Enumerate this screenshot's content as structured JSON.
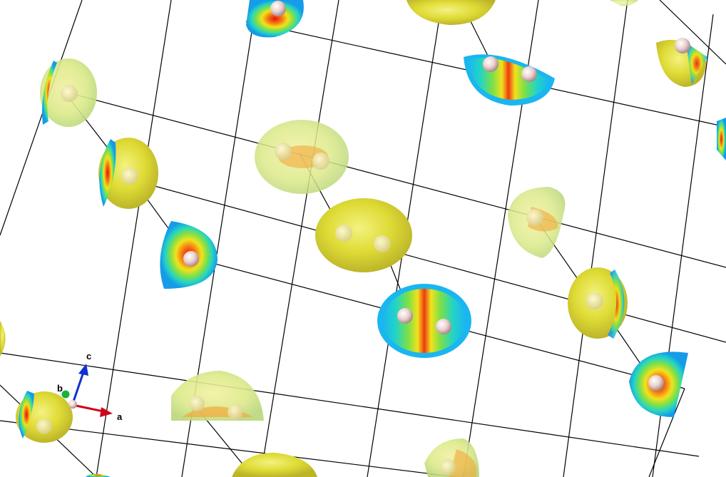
{
  "viewer": {
    "background": "#ffffff",
    "cell_edge_color": "#000000",
    "atom_color": "#f1d9d9",
    "isosurface_color": "#e3e03a"
  },
  "axes": {
    "a": {
      "label": "a",
      "color": "#d0021b"
    },
    "b": {
      "label": "b",
      "color": "#19b23a"
    },
    "c": {
      "label": "c",
      "color": "#1030d0"
    }
  }
}
